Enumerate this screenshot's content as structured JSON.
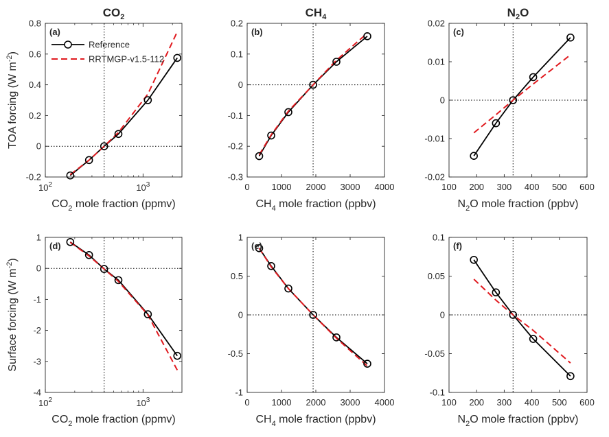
{
  "colors": {
    "reference": "#000000",
    "rrtmgp": "#e0191e",
    "axes": "#262626"
  },
  "legend": {
    "placement": "top-left",
    "entries": [
      "Reference",
      "RRTMGP-v1.5-112"
    ]
  },
  "column_titles": [
    {
      "base": "CO",
      "sub": "2",
      "tail": ""
    },
    {
      "base": "CH",
      "sub": "4",
      "tail": ""
    },
    {
      "base": "N",
      "sub": "2",
      "tail": "O"
    }
  ],
  "row_ylabels": [
    {
      "pre": "TOA forcing (W m",
      "sup": "-2",
      "post": ")"
    },
    {
      "pre": "Surface forcing (W m",
      "sup": "-2",
      "post": ")"
    }
  ],
  "chart_data": [
    {
      "type": "line",
      "panel_label": "(a)",
      "xlabel": {
        "pre": "CO",
        "sub": "2",
        "post": " mole fraction (ppmv)"
      },
      "xscale": "log",
      "xlim": [
        100,
        2500
      ],
      "ylim": [
        -0.2,
        0.8
      ],
      "xtick_labels": [
        {
          "v": 100,
          "base": "10",
          "exp": "2"
        },
        {
          "v": 1000,
          "base": "10",
          "exp": "3"
        }
      ],
      "ytick_values": [
        -0.2,
        0,
        0.2,
        0.4,
        0.6,
        0.8
      ],
      "ytick_labels": [
        "-0.2",
        "0",
        "0.2",
        "0.4",
        "0.6",
        "0.8"
      ],
      "ref_x": 400,
      "show_legend": true,
      "series": [
        {
          "name": "Reference",
          "style": "solid-circle",
          "x": [
            180,
            280,
            400,
            560,
            1120,
            2240
          ],
          "y": [
            -0.19,
            -0.09,
            0.0,
            0.08,
            0.3,
            0.575
          ]
        },
        {
          "name": "RRTMGP-v1.5-112",
          "style": "dashed",
          "x": [
            180,
            280,
            400,
            560,
            1120,
            2240
          ],
          "y": [
            -0.185,
            -0.09,
            0.0,
            0.09,
            0.34,
            0.745
          ]
        }
      ]
    },
    {
      "type": "line",
      "panel_label": "(b)",
      "xlabel": {
        "pre": "CH",
        "sub": "4",
        "post": " mole fraction (ppbv)"
      },
      "xscale": "linear",
      "xlim": [
        0,
        4000
      ],
      "ylim": [
        -0.3,
        0.2
      ],
      "xtick_values": [
        0,
        1000,
        2000,
        3000,
        4000
      ],
      "xtick_labels": [
        "0",
        "1000",
        "2000",
        "3000",
        "4000"
      ],
      "ytick_values": [
        -0.3,
        -0.2,
        -0.1,
        0,
        0.1,
        0.2
      ],
      "ytick_labels": [
        "-0.3",
        "-0.2",
        "-0.1",
        "0",
        "0.1",
        "0.2"
      ],
      "ref_x": 1921,
      "show_legend": false,
      "series": [
        {
          "name": "Reference",
          "style": "solid-circle",
          "x": [
            350,
            700,
            1200,
            1921,
            2600,
            3500
          ],
          "y": [
            -0.232,
            -0.165,
            -0.089,
            0.0,
            0.075,
            0.158
          ]
        },
        {
          "name": "RRTMGP-v1.5-112",
          "style": "dashed",
          "x": [
            350,
            700,
            1200,
            1921,
            2600,
            3500
          ],
          "y": [
            -0.228,
            -0.163,
            -0.086,
            0.0,
            0.08,
            0.168
          ]
        }
      ]
    },
    {
      "type": "line",
      "panel_label": "(c)",
      "xlabel": {
        "pre": "N",
        "sub": "2",
        "post": "O mole fraction (ppbv)"
      },
      "xscale": "linear",
      "xlim": [
        100,
        600
      ],
      "ylim": [
        -0.02,
        0.02
      ],
      "xtick_values": [
        100,
        200,
        300,
        400,
        500,
        600
      ],
      "xtick_labels": [
        "100",
        "200",
        "300",
        "400",
        "500",
        "600"
      ],
      "ytick_values": [
        -0.02,
        -0.01,
        0,
        0.01,
        0.02
      ],
      "ytick_labels": [
        "-0.02",
        "-0.01",
        "0",
        "0.01",
        "0.02"
      ],
      "ref_x": 332,
      "show_legend": false,
      "series": [
        {
          "name": "Reference",
          "style": "solid-circle",
          "x": [
            190,
            270,
            332,
            405,
            540
          ],
          "y": [
            -0.0145,
            -0.006,
            0.0,
            0.006,
            0.0163
          ]
        },
        {
          "name": "RRTMGP-v1.5-112",
          "style": "dashed",
          "x": [
            190,
            270,
            332,
            405,
            540
          ],
          "y": [
            -0.0085,
            -0.0038,
            0.0,
            0.0042,
            0.0118
          ]
        }
      ]
    },
    {
      "type": "line",
      "panel_label": "(d)",
      "xlabel": {
        "pre": "CO",
        "sub": "2",
        "post": " mole fraction (ppmv)"
      },
      "xscale": "log",
      "xlim": [
        100,
        2500
      ],
      "ylim": [
        -4,
        1
      ],
      "xtick_labels": [
        {
          "v": 100,
          "base": "10",
          "exp": "2"
        },
        {
          "v": 1000,
          "base": "10",
          "exp": "3"
        }
      ],
      "ytick_values": [
        -4,
        -3,
        -2,
        -1,
        0,
        1
      ],
      "ytick_labels": [
        "-4",
        "-3",
        "-2",
        "-1",
        "0",
        "1"
      ],
      "ref_x": 400,
      "show_legend": false,
      "series": [
        {
          "name": "Reference",
          "style": "solid-circle",
          "x": [
            180,
            280,
            400,
            560,
            1120,
            2240
          ],
          "y": [
            0.85,
            0.43,
            -0.02,
            -0.38,
            -1.48,
            -2.82
          ]
        },
        {
          "name": "RRTMGP-v1.5-112",
          "style": "dashed",
          "x": [
            180,
            280,
            400,
            560,
            1120,
            2240
          ],
          "y": [
            0.84,
            0.4,
            -0.02,
            -0.42,
            -1.5,
            -3.28
          ]
        }
      ]
    },
    {
      "type": "line",
      "panel_label": "(e)",
      "xlabel": {
        "pre": "CH",
        "sub": "4",
        "post": " mole fraction (ppbv)"
      },
      "xscale": "linear",
      "xlim": [
        0,
        4000
      ],
      "ylim": [
        -1,
        1
      ],
      "xtick_values": [
        0,
        1000,
        2000,
        3000,
        4000
      ],
      "xtick_labels": [
        "0",
        "1000",
        "2000",
        "3000",
        "4000"
      ],
      "ytick_values": [
        -1,
        -0.5,
        0,
        0.5,
        1
      ],
      "ytick_labels": [
        "-1",
        "-0.5",
        "0",
        "0.5",
        "1"
      ],
      "ref_x": 1921,
      "show_legend": false,
      "series": [
        {
          "name": "Reference",
          "style": "solid-circle",
          "x": [
            350,
            700,
            1200,
            1921,
            2600,
            3500
          ],
          "y": [
            0.86,
            0.63,
            0.34,
            0.0,
            -0.29,
            -0.63
          ]
        },
        {
          "name": "RRTMGP-v1.5-112",
          "style": "dashed",
          "x": [
            350,
            700,
            1200,
            1921,
            2600,
            3500
          ],
          "y": [
            0.86,
            0.62,
            0.34,
            0.0,
            -0.3,
            -0.66
          ]
        }
      ]
    },
    {
      "type": "line",
      "panel_label": "(f)",
      "xlabel": {
        "pre": "N",
        "sub": "2",
        "post": "O mole fraction (ppbv)"
      },
      "xscale": "linear",
      "xlim": [
        100,
        600
      ],
      "ylim": [
        -0.1,
        0.1
      ],
      "xtick_values": [
        100,
        200,
        300,
        400,
        500,
        600
      ],
      "xtick_labels": [
        "100",
        "200",
        "300",
        "400",
        "500",
        "600"
      ],
      "ytick_values": [
        -0.1,
        -0.05,
        0,
        0.05,
        0.1
      ],
      "ytick_labels": [
        "-0.1",
        "-0.05",
        "0",
        "0.05",
        "0.1"
      ],
      "ref_x": 332,
      "show_legend": false,
      "series": [
        {
          "name": "Reference",
          "style": "solid-circle",
          "x": [
            190,
            270,
            332,
            405,
            540
          ],
          "y": [
            0.071,
            0.029,
            0.0,
            -0.031,
            -0.079
          ]
        },
        {
          "name": "RRTMGP-v1.5-112",
          "style": "dashed",
          "x": [
            190,
            270,
            332,
            405,
            540
          ],
          "y": [
            0.046,
            0.019,
            0.0,
            -0.02,
            -0.062
          ]
        }
      ]
    }
  ]
}
